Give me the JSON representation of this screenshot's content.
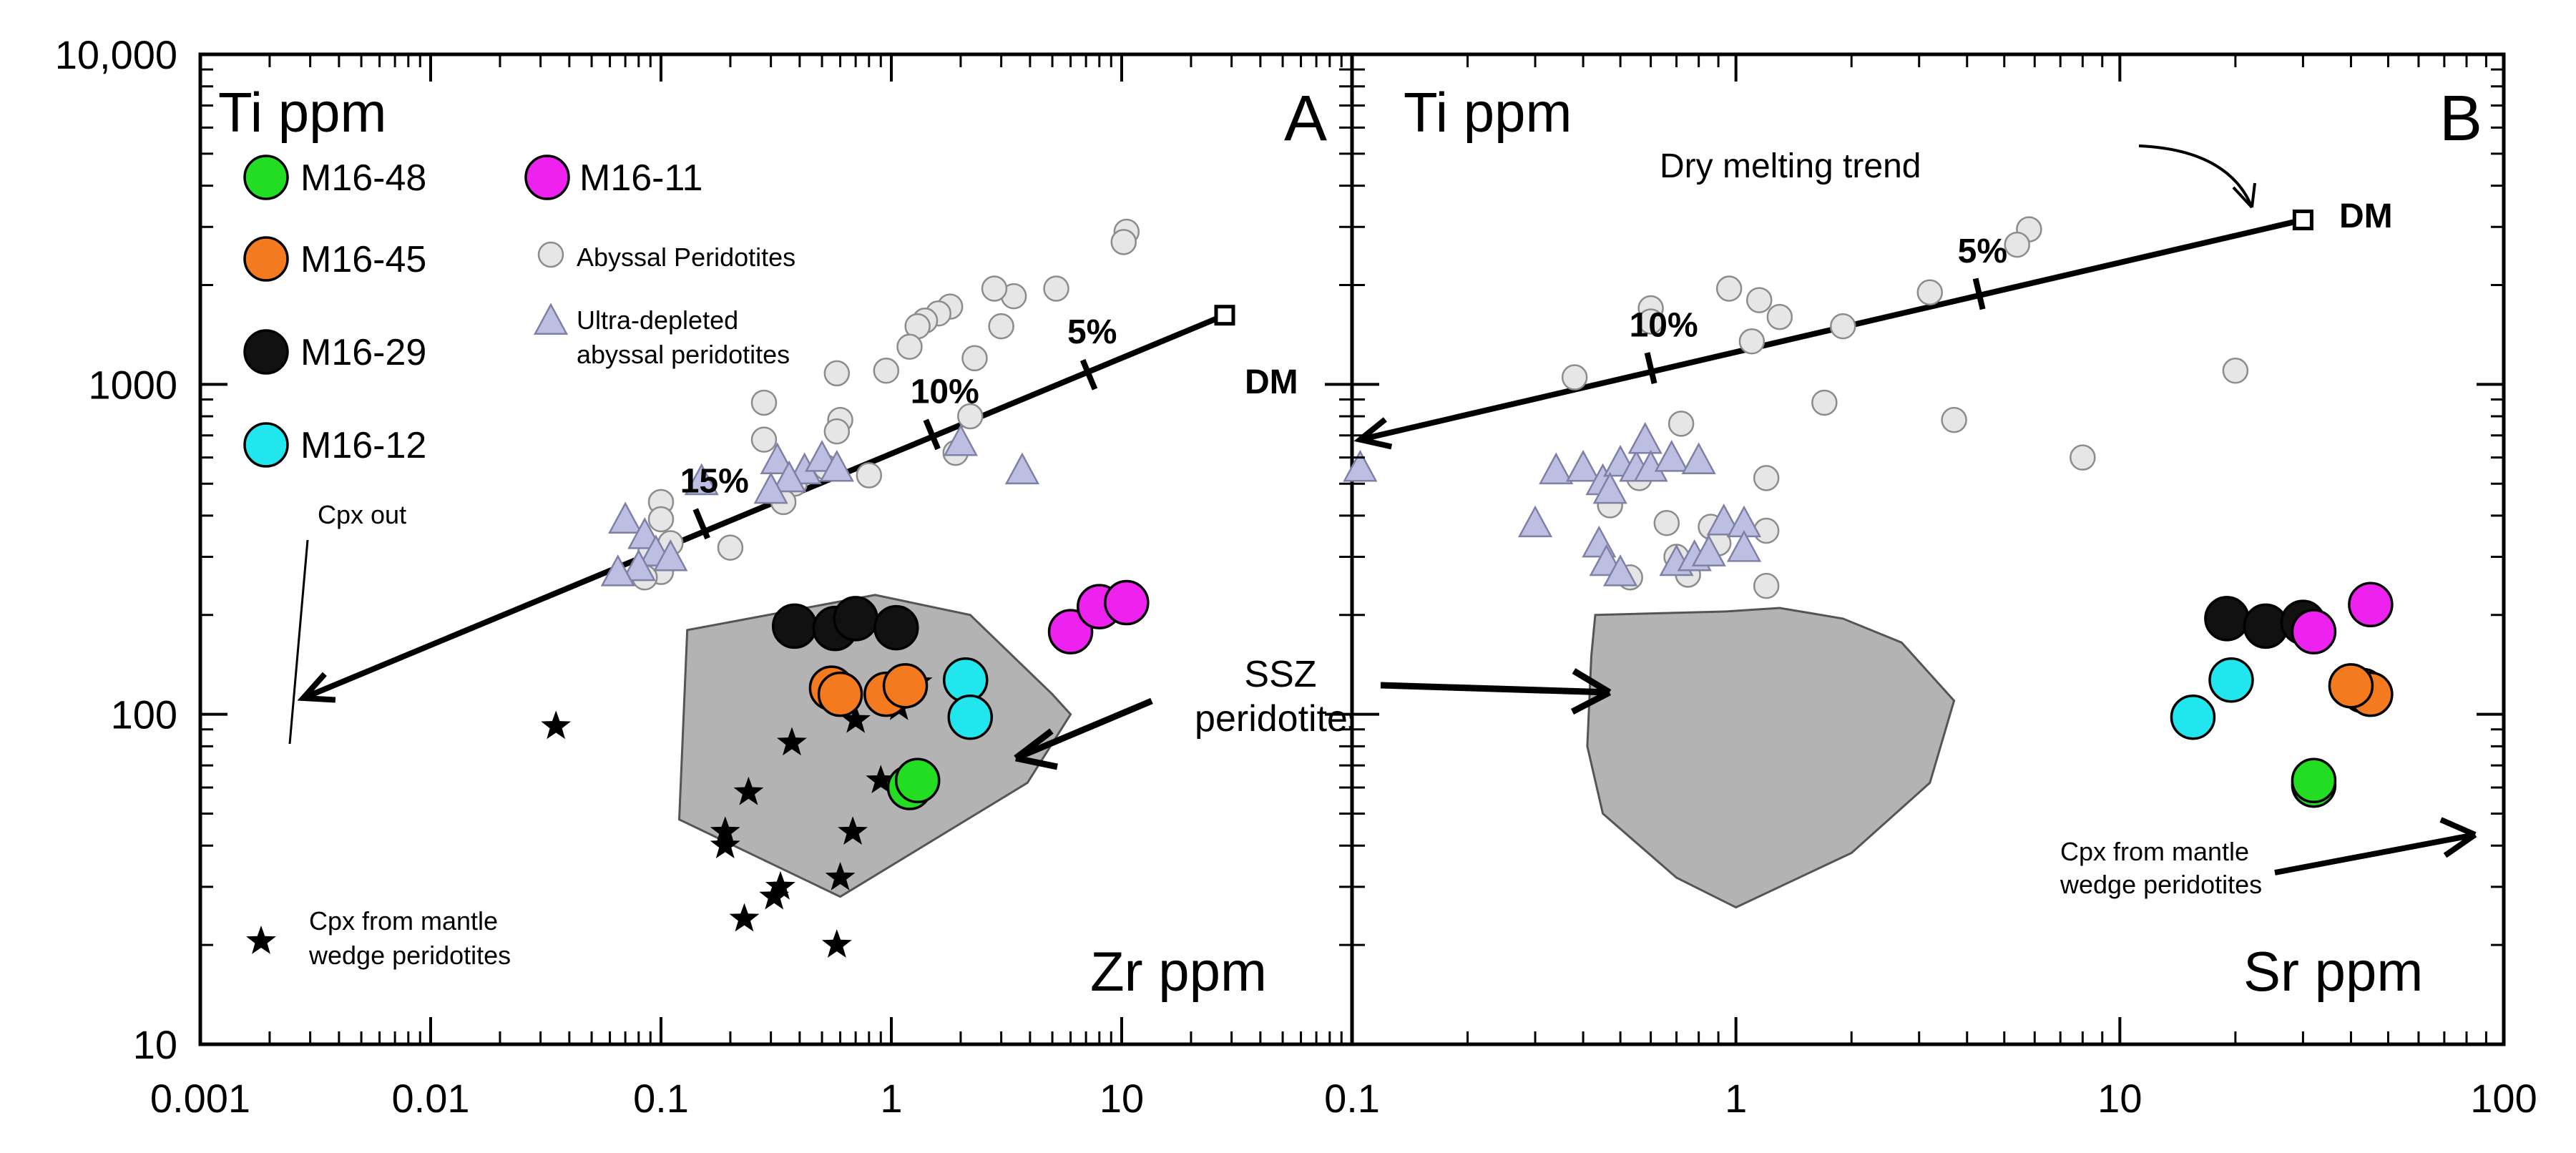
{
  "chart_data": {
    "type": "scatter",
    "xscale": "log",
    "yscale": "log",
    "ylim": [
      10,
      10000
    ],
    "y_tick_labels": [
      "10",
      "100",
      "1000",
      "10,000"
    ],
    "y_tick_values": [
      10,
      100,
      1000,
      10000
    ],
    "colors": {
      "M16-48": "#22dd22",
      "M16-45": "#f47a20",
      "M16-29": "#111111",
      "M16-12": "#22e6ee",
      "M16-11": "#ee22ee",
      "abyssal": "#e6e6e6",
      "ultra": "#bdbfe2",
      "ssz_fill": "#b3b3b3"
    },
    "legend": [
      {
        "key": "M16-48",
        "label": "M16-48",
        "marker": "circle"
      },
      {
        "key": "M16-11",
        "label": "M16-11",
        "marker": "circle"
      },
      {
        "key": "M16-45",
        "label": "M16-45",
        "marker": "circle"
      },
      {
        "key": "abyssal",
        "label": "Abyssal Peridotites",
        "marker": "small-circle"
      },
      {
        "key": "M16-29",
        "label": "M16-29",
        "marker": "circle"
      },
      {
        "key": "ultra",
        "label_lines": [
          "Ultra-depleted",
          "abyssal peridotites"
        ],
        "marker": "triangle"
      },
      {
        "key": "M16-12",
        "label": "M16-12",
        "marker": "circle"
      },
      {
        "key": "star",
        "label_lines": [
          "Cpx from mantle",
          "wedge peridotites"
        ],
        "marker": "star"
      }
    ],
    "panels": [
      {
        "id": "A",
        "letter": "A",
        "ylabel": "Ti ppm",
        "xlabel": "Zr ppm",
        "xlim": [
          0.001,
          100
        ],
        "x_tick_labels": [
          "0.001",
          "0.01",
          "0.1",
          "1",
          "10"
        ],
        "x_tick_values": [
          0.001,
          0.01,
          0.1,
          1,
          10
        ],
        "melting_line": {
          "from": [
            28,
            1620
          ],
          "to": [
            0.0028,
            112
          ]
        },
        "melting_ticks": [
          {
            "x": 7.2,
            "y": 1070,
            "label": "5%"
          },
          {
            "x": 1.5,
            "y": 705,
            "label": "10%"
          },
          {
            "x": 0.15,
            "y": 378,
            "label": "15%"
          }
        ],
        "dm": {
          "x": 28,
          "y": 1620,
          "label": "DM"
        },
        "annotations": {
          "cpx_out": "Cpx out",
          "ssz_line1": "SSZ",
          "ssz_line2": "peridotites"
        },
        "ssz_polygon": [
          [
            0.13,
            180
          ],
          [
            0.85,
            230
          ],
          [
            2.2,
            200
          ],
          [
            5.0,
            115
          ],
          [
            6.0,
            100
          ],
          [
            3.9,
            62
          ],
          [
            0.6,
            28
          ],
          [
            0.12,
            48
          ]
        ],
        "series": [
          {
            "key": "abyssal",
            "points": [
              [
                10.5,
                2900
              ],
              [
                10.2,
                2700
              ],
              [
                5.2,
                1950
              ],
              [
                3.4,
                1850
              ],
              [
                2.8,
                1950
              ],
              [
                1.8,
                1720
              ],
              [
                1.6,
                1640
              ],
              [
                1.4,
                1560
              ],
              [
                1.3,
                1500
              ],
              [
                3.0,
                1500
              ],
              [
                1.2,
                1300
              ],
              [
                2.3,
                1200
              ],
              [
                0.95,
                1100
              ],
              [
                0.58,
                1080
              ],
              [
                0.28,
                880
              ],
              [
                2.2,
                800
              ],
              [
                0.6,
                780
              ],
              [
                0.58,
                720
              ],
              [
                0.28,
                680
              ],
              [
                1.9,
                620
              ],
              [
                0.52,
                560
              ],
              [
                0.8,
                530
              ],
              [
                0.38,
                500
              ],
              [
                0.1,
                440
              ],
              [
                0.34,
                440
              ],
              [
                0.1,
                390
              ],
              [
                0.11,
                330
              ],
              [
                0.09,
                310
              ],
              [
                0.2,
                320
              ],
              [
                0.1,
                270
              ],
              [
                0.085,
                260
              ]
            ]
          },
          {
            "key": "ultra",
            "points": [
              [
                0.15,
                510
              ],
              [
                0.32,
                590
              ],
              [
                0.42,
                550
              ],
              [
                0.5,
                600
              ],
              [
                0.58,
                560
              ],
              [
                0.36,
                520
              ],
              [
                0.3,
                480
              ],
              [
                0.07,
                390
              ],
              [
                0.085,
                350
              ],
              [
                0.095,
                310
              ],
              [
                0.11,
                300
              ],
              [
                0.08,
                280
              ],
              [
                0.065,
                270
              ],
              [
                2.0,
                670
              ],
              [
                3.7,
                550
              ]
            ]
          },
          {
            "key": "star",
            "points": [
              [
                0.035,
                92
              ],
              [
                0.37,
                82
              ],
              [
                0.7,
                96
              ],
              [
                1.08,
                105
              ],
              [
                1.3,
                125
              ],
              [
                0.9,
                63
              ],
              [
                0.24,
                58
              ],
              [
                0.68,
                44
              ],
              [
                0.19,
                44
              ],
              [
                0.19,
                40
              ],
              [
                0.33,
                30
              ],
              [
                0.31,
                28
              ],
              [
                0.6,
                32
              ],
              [
                0.23,
                24
              ],
              [
                0.58,
                20
              ]
            ]
          },
          {
            "key": "M16-29",
            "points": [
              [
                0.38,
                185
              ],
              [
                0.57,
                182
              ],
              [
                0.7,
                195
              ],
              [
                1.05,
                183
              ]
            ]
          },
          {
            "key": "M16-45",
            "points": [
              [
                0.55,
                120
              ],
              [
                0.6,
                115
              ],
              [
                0.95,
                115
              ],
              [
                1.15,
                122
              ]
            ]
          },
          {
            "key": "M16-12",
            "points": [
              [
                2.1,
                127
              ],
              [
                2.2,
                98
              ]
            ]
          },
          {
            "key": "M16-48",
            "points": [
              [
                1.2,
                60
              ],
              [
                1.3,
                63
              ]
            ]
          },
          {
            "key": "M16-11",
            "points": [
              [
                6.0,
                178
              ],
              [
                8.0,
                212
              ],
              [
                10.5,
                218
              ]
            ]
          }
        ]
      },
      {
        "id": "B",
        "letter": "B",
        "ylabel": "Ti ppm",
        "xlabel": "Sr ppm",
        "xlim": [
          0.1,
          100
        ],
        "x_tick_labels": [
          "0.1",
          "1",
          "10",
          "100"
        ],
        "x_tick_values": [
          0.1,
          1,
          10,
          100
        ],
        "melting_line": {
          "from": [
            30,
            3150
          ],
          "to": [
            0.105,
            680
          ]
        },
        "melting_ticks": [
          {
            "x": 4.3,
            "y": 1880,
            "label": "5%"
          },
          {
            "x": 0.6,
            "y": 1120,
            "label": "10%"
          }
        ],
        "dm": {
          "x": 30,
          "y": 3150,
          "label": "DM"
        },
        "annotations": {
          "dry_trend": "Dry melting trend",
          "cpx_mantle_line1": "Cpx from mantle",
          "cpx_mantle_line2": "wedge peridotites"
        },
        "ssz_polygon": [
          [
            0.43,
            200
          ],
          [
            0.95,
            205
          ],
          [
            1.3,
            210
          ],
          [
            1.9,
            195
          ],
          [
            2.7,
            165
          ],
          [
            3.7,
            110
          ],
          [
            3.2,
            62
          ],
          [
            2.0,
            38
          ],
          [
            1.0,
            26
          ],
          [
            0.7,
            32
          ],
          [
            0.45,
            50
          ],
          [
            0.41,
            80
          ],
          [
            0.42,
            150
          ]
        ],
        "series": [
          {
            "key": "abyssal",
            "points": [
              [
                5.8,
                2950
              ],
              [
                5.4,
                2650
              ],
              [
                3.2,
                1900
              ],
              [
                0.96,
                1950
              ],
              [
                1.15,
                1800
              ],
              [
                1.3,
                1600
              ],
              [
                1.1,
                1350
              ],
              [
                1.9,
                1500
              ],
              [
                0.6,
                1700
              ],
              [
                0.6,
                1550
              ],
              [
                0.38,
                1050
              ],
              [
                20,
                1100
              ],
              [
                1.7,
                880
              ],
              [
                3.7,
                780
              ],
              [
                8.0,
                600
              ],
              [
                0.72,
                760
              ],
              [
                0.56,
                520
              ],
              [
                0.47,
                430
              ],
              [
                1.2,
                520
              ],
              [
                0.66,
                380
              ],
              [
                0.86,
                370
              ],
              [
                1.2,
                360
              ],
              [
                0.9,
                330
              ],
              [
                0.7,
                300
              ],
              [
                0.75,
                265
              ],
              [
                1.2,
                245
              ],
              [
                0.53,
                260
              ]
            ]
          },
          {
            "key": "ultra",
            "points": [
              [
                0.105,
                560
              ],
              [
                0.34,
                550
              ],
              [
                0.4,
                560
              ],
              [
                0.45,
                510
              ],
              [
                0.5,
                580
              ],
              [
                0.55,
                560
              ],
              [
                0.58,
                680
              ],
              [
                0.6,
                560
              ],
              [
                0.68,
                600
              ],
              [
                0.8,
                590
              ],
              [
                0.47,
                480
              ],
              [
                0.3,
                380
              ],
              [
                0.44,
                330
              ],
              [
                0.46,
                290
              ],
              [
                0.5,
                270
              ],
              [
                0.7,
                290
              ],
              [
                0.78,
                300
              ],
              [
                0.93,
                385
              ],
              [
                1.05,
                380
              ],
              [
                1.05,
                320
              ],
              [
                0.85,
                310
              ]
            ]
          },
          {
            "key": "M16-29",
            "points": [
              [
                19,
                195
              ],
              [
                24,
                185
              ],
              [
                30,
                190
              ]
            ]
          },
          {
            "key": "M16-11",
            "points": [
              [
                32,
                178
              ],
              [
                45,
                215
              ]
            ]
          },
          {
            "key": "M16-12",
            "points": [
              [
                15.5,
                98
              ],
              [
                19.5,
                127
              ]
            ]
          },
          {
            "key": "M16-45",
            "points": [
              [
                43,
                118
              ],
              [
                45,
                115
              ],
              [
                40,
                122
              ]
            ]
          },
          {
            "key": "M16-48",
            "points": [
              [
                32,
                61
              ],
              [
                32,
                63
              ]
            ]
          }
        ]
      }
    ]
  }
}
